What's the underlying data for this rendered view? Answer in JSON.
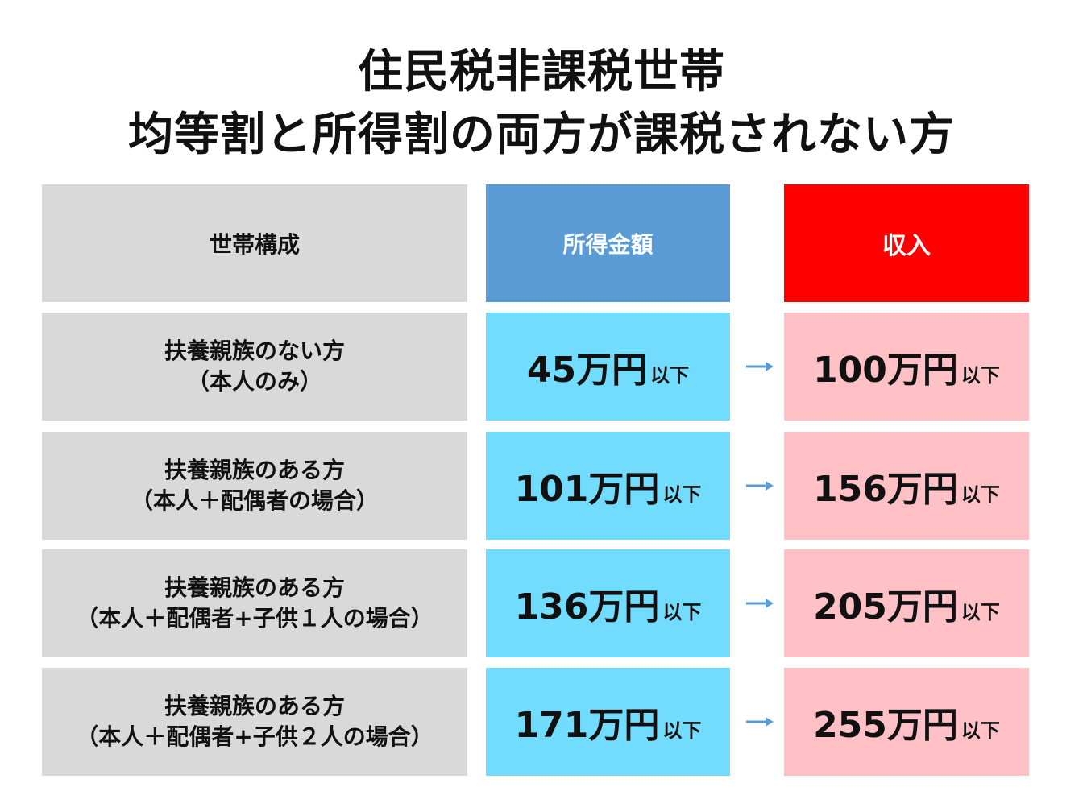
{
  "title": {
    "line1": "住民税非課税世帯",
    "line2": "均等割と所得割の両方が課税されない方"
  },
  "table": {
    "headers": {
      "household": "世帯構成",
      "income_amount": "所得金額",
      "revenue": "収入"
    },
    "suffix": "以下",
    "rows": [
      {
        "line1": "扶養親族のない方",
        "line2": "（本人のみ）",
        "income": "45万円",
        "revenue": "100万円"
      },
      {
        "line1": "扶養親族のある方",
        "line2": "（本人＋配偶者の場合）",
        "income": "101万円",
        "revenue": "156万円"
      },
      {
        "line1": "扶養親族のある方",
        "line2": "（本人＋配偶者+子供１人の場合）",
        "income": "136万円",
        "revenue": "205万円"
      },
      {
        "line1": "扶養親族のある方",
        "line2": "（本人＋配偶者+子供２人の場合）",
        "income": "171万円",
        "revenue": "255万円"
      }
    ]
  },
  "colors": {
    "header_gray": "#d9d9d9",
    "header_blue": "#5b9bd5",
    "header_red": "#ff0000",
    "income_cell": "#72dcff",
    "revenue_cell": "#ffc0c6",
    "arrow": "#5b9bd5"
  },
  "icons": {
    "arrow": "arrow-right-icon"
  }
}
